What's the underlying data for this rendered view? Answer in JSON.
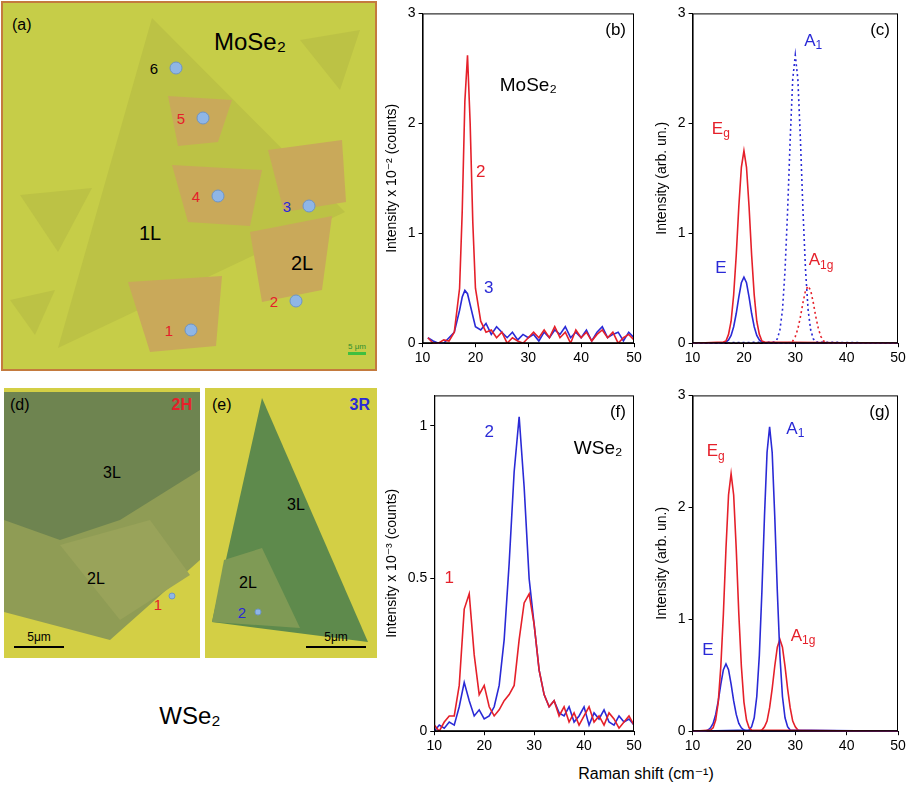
{
  "figure": {
    "x_label": "Raman shift (cm⁻¹)",
    "caption": "WSe₂"
  },
  "images": [
    {
      "panel": "(a)",
      "title": "MoSe₂",
      "title_color": "#000000",
      "regions": [
        "1L",
        "2L"
      ],
      "points": [
        {
          "label": "1",
          "color": "#e5202a"
        },
        {
          "label": "2",
          "color": "#e5202a"
        },
        {
          "label": "3",
          "color": "#2a2ad6"
        },
        {
          "label": "4",
          "color": "#e5202a"
        },
        {
          "label": "5",
          "color": "#e5202a"
        },
        {
          "label": "6",
          "color": "#000000"
        }
      ],
      "scale_bar": "5 μm"
    },
    {
      "panel": "(d)",
      "title": "2H",
      "title_color": "#e5202a",
      "regions": [
        "3L",
        "2L"
      ],
      "points": [
        {
          "label": "1",
          "color": "#e5202a"
        }
      ],
      "scale_bar": "5μm"
    },
    {
      "panel": "(e)",
      "title": "3R",
      "title_color": "#2a2ad6",
      "regions": [
        "3L",
        "2L"
      ],
      "points": [
        {
          "label": "2",
          "color": "#2a2ad6"
        }
      ],
      "scale_bar": "5μm"
    }
  ],
  "chart_data": [
    {
      "type": "line",
      "panel": "(b)",
      "title": "MoSe₂",
      "y_label": "Intensity x 10⁻² (counts)",
      "xlim": [
        10,
        50
      ],
      "xticks": [
        10,
        20,
        30,
        40,
        50
      ],
      "ylim": [
        0,
        3
      ],
      "yticks": [
        0,
        1,
        2,
        3
      ],
      "grid": false,
      "x": [
        11,
        12,
        13,
        14,
        15,
        16,
        17,
        17.5,
        18,
        18.5,
        19,
        19.5,
        20,
        21,
        22,
        23,
        24,
        25,
        26,
        27,
        28,
        29,
        30,
        31,
        32,
        33,
        34,
        35,
        36,
        37,
        38,
        39,
        40,
        41,
        42,
        43,
        44,
        45,
        46,
        47,
        48,
        49,
        50
      ],
      "series": [
        {
          "name": "2",
          "color": "#e5202a",
          "line_style": "solid",
          "label_x": 21,
          "label_y": 1.55,
          "values": [
            0.05,
            0,
            0,
            0.03,
            0.02,
            0.1,
            0.5,
            1.2,
            2.2,
            2.62,
            2.0,
            1.1,
            0.5,
            0.2,
            0.1,
            0.12,
            0.05,
            0.1,
            0,
            0.05,
            0.02,
            0,
            0.05,
            0.1,
            0.05,
            0.12,
            0.05,
            0.15,
            0.05,
            0.1,
            0,
            0.12,
            0.05,
            0.1,
            0.02,
            0.08,
            0.12,
            0.05,
            0.1,
            0,
            0.05,
            0.08,
            0.03
          ]
        },
        {
          "name": "3",
          "color": "#2a2ad6",
          "line_style": "solid",
          "label_x": 22.5,
          "label_y": 0.5,
          "values": [
            0.05,
            0.02,
            0,
            0,
            0.05,
            0.1,
            0.3,
            0.42,
            0.48,
            0.45,
            0.35,
            0.25,
            0.15,
            0.12,
            0.18,
            0.08,
            0.15,
            0.1,
            0.05,
            0.1,
            0.03,
            0.08,
            0.05,
            0.08,
            0.02,
            0.1,
            0.05,
            0.12,
            0.08,
            0.15,
            0.05,
            0.1,
            0.05,
            0.12,
            0.02,
            0.1,
            0.15,
            0.05,
            0.08,
            0.1,
            0.02,
            0.1,
            0.05
          ]
        }
      ]
    },
    {
      "type": "line",
      "panel": "(c)",
      "y_label": "Intensity (arb. un.)",
      "xlim": [
        10,
        50
      ],
      "xticks": [
        10,
        20,
        30,
        40,
        50
      ],
      "ylim": [
        0,
        3
      ],
      "yticks": [
        0,
        1,
        2,
        3
      ],
      "grid": false,
      "series": [
        {
          "name": "Eg",
          "color": "#e5202a",
          "line_style": "solid",
          "label_x": 15.5,
          "label_y": 1.95,
          "x": [
            10,
            16,
            16.5,
            17,
            17.5,
            18,
            18.5,
            19,
            19.5,
            20,
            20.5,
            21,
            21.5,
            22,
            22.5,
            23,
            23.5,
            24,
            50
          ],
          "values": [
            0,
            0.01,
            0.02,
            0.08,
            0.2,
            0.44,
            0.8,
            1.24,
            1.6,
            1.75,
            1.6,
            1.24,
            0.8,
            0.44,
            0.2,
            0.08,
            0.02,
            0.01,
            0
          ]
        },
        {
          "name": "E",
          "color": "#2a2ad6",
          "line_style": "solid",
          "label_x": 15.5,
          "label_y": 0.68,
          "x": [
            10,
            16,
            16.5,
            17,
            17.5,
            18,
            18.5,
            19,
            19.5,
            20,
            20.5,
            21,
            21.5,
            22,
            22.5,
            23,
            23.5,
            24,
            50
          ],
          "values": [
            0,
            0,
            0.01,
            0.03,
            0.07,
            0.15,
            0.27,
            0.42,
            0.55,
            0.6,
            0.55,
            0.42,
            0.27,
            0.15,
            0.07,
            0.03,
            0.01,
            0,
            0
          ]
        },
        {
          "name": "A1",
          "color": "#2a2ad6",
          "line_style": "dotted",
          "label_x": 33.5,
          "label_y": 2.75,
          "x": [
            10,
            26,
            26.5,
            27,
            27.5,
            28,
            28.5,
            29,
            29.5,
            30,
            30.5,
            31,
            31.5,
            32,
            32.5,
            33,
            33.5,
            34,
            50
          ],
          "values": [
            0,
            0.01,
            0.04,
            0.12,
            0.3,
            0.66,
            1.2,
            1.85,
            2.4,
            2.62,
            2.4,
            1.85,
            1.2,
            0.66,
            0.3,
            0.12,
            0.04,
            0.01,
            0
          ]
        },
        {
          "name": "A1g",
          "color": "#e5202a",
          "line_style": "dotted",
          "label_x": 35,
          "label_y": 0.75,
          "x": [
            10,
            28.5,
            29,
            29.5,
            30,
            30.5,
            31,
            31.5,
            32,
            32.5,
            33,
            33.5,
            34,
            34.5,
            35,
            35.5,
            36,
            36.5,
            50
          ],
          "values": [
            0,
            0,
            0.01,
            0.02,
            0.06,
            0.13,
            0.24,
            0.37,
            0.48,
            0.52,
            0.48,
            0.37,
            0.24,
            0.13,
            0.06,
            0.02,
            0.01,
            0,
            0
          ]
        }
      ]
    },
    {
      "type": "line",
      "panel": "(f)",
      "title": "WSe₂",
      "y_label": "Intensity x 10⁻³ (counts)",
      "xlim": [
        10,
        50
      ],
      "xticks": [
        10,
        20,
        30,
        40,
        50
      ],
      "ylim": [
        0,
        1.1
      ],
      "yticks": [
        0,
        0.5,
        1
      ],
      "grid": false,
      "x": [
        10,
        11,
        12,
        13,
        14,
        15,
        16,
        17,
        18,
        19,
        20,
        21,
        22,
        23,
        24,
        25,
        26,
        27,
        28,
        29,
        30,
        31,
        32,
        33,
        34,
        35,
        36,
        37,
        38,
        39,
        40,
        41,
        42,
        43,
        44,
        45,
        46,
        47,
        48,
        49,
        50
      ],
      "series": [
        {
          "name": "1",
          "color": "#e5202a",
          "line_style": "solid",
          "label_x": 13,
          "label_y": 0.5,
          "values": [
            0.02,
            0,
            0.03,
            0.05,
            0.05,
            0.15,
            0.4,
            0.45,
            0.25,
            0.12,
            0.15,
            0.08,
            0.05,
            0.07,
            0.1,
            0.12,
            0.15,
            0.3,
            0.42,
            0.45,
            0.35,
            0.2,
            0.12,
            0.08,
            0.1,
            0.05,
            0.08,
            0.03,
            0.06,
            0.02,
            0.05,
            0.08,
            0.03,
            0.05,
            0.02,
            0.06,
            0.04,
            0.01,
            0.03,
            0.05,
            0.02
          ]
        },
        {
          "name": "2",
          "color": "#2a2ad6",
          "line_style": "solid",
          "label_x": 21,
          "label_y": 0.98,
          "values": [
            0,
            0.02,
            0.01,
            0.03,
            0.02,
            0.08,
            0.16,
            0.1,
            0.05,
            0.07,
            0.04,
            0.05,
            0.08,
            0.15,
            0.3,
            0.55,
            0.85,
            1.03,
            0.8,
            0.5,
            0.35,
            0.2,
            0.12,
            0.08,
            0.1,
            0.06,
            0.05,
            0.08,
            0.03,
            0.05,
            0.08,
            0.02,
            0.06,
            0.04,
            0.07,
            0.03,
            0.02,
            0.05,
            0.03,
            0.04,
            0.02
          ]
        }
      ]
    },
    {
      "type": "line",
      "panel": "(g)",
      "y_label": "Intensity (arb. un.)",
      "xlim": [
        10,
        50
      ],
      "xticks": [
        10,
        20,
        30,
        40,
        50
      ],
      "ylim": [
        0,
        3
      ],
      "yticks": [
        0,
        1,
        2,
        3
      ],
      "grid": false,
      "series": [
        {
          "name": "Eg",
          "color": "#e5202a",
          "line_style": "solid",
          "label_x": 14.5,
          "label_y": 2.5,
          "x": [
            10,
            13.5,
            14,
            14.5,
            15,
            15.5,
            16,
            16.5,
            17,
            17.5,
            18,
            18.5,
            19,
            19.5,
            20,
            20.5,
            21,
            21.5,
            50
          ],
          "values": [
            0,
            0.01,
            0.03,
            0.1,
            0.26,
            0.58,
            1.05,
            1.63,
            2.11,
            2.3,
            2.11,
            1.63,
            1.05,
            0.58,
            0.26,
            0.1,
            0.03,
            0.01,
            0
          ]
        },
        {
          "name": "E",
          "color": "#2a2ad6",
          "line_style": "solid",
          "label_x": 13,
          "label_y": 0.72,
          "x": [
            10,
            12.5,
            13,
            13.5,
            14,
            14.5,
            15,
            15.5,
            16,
            16.5,
            17,
            17.5,
            18,
            18.5,
            19,
            19.5,
            20,
            20.5,
            50
          ],
          "values": [
            0,
            0,
            0.01,
            0.03,
            0.07,
            0.15,
            0.27,
            0.42,
            0.55,
            0.6,
            0.55,
            0.42,
            0.27,
            0.15,
            0.07,
            0.03,
            0.01,
            0,
            0
          ]
        },
        {
          "name": "A1",
          "color": "#2a2ad6",
          "line_style": "solid",
          "label_x": 30,
          "label_y": 2.7,
          "x": [
            10,
            21,
            21.5,
            22,
            22.5,
            23,
            23.5,
            24,
            24.5,
            25,
            25.5,
            26,
            26.5,
            27,
            27.5,
            28,
            28.5,
            29,
            50
          ],
          "values": [
            0,
            0.01,
            0.04,
            0.12,
            0.31,
            0.68,
            1.25,
            1.92,
            2.49,
            2.72,
            2.49,
            1.92,
            1.25,
            0.68,
            0.31,
            0.12,
            0.04,
            0.01,
            0
          ]
        },
        {
          "name": "A1g",
          "color": "#e5202a",
          "line_style": "solid",
          "label_x": 31.5,
          "label_y": 0.85,
          "x": [
            10,
            23,
            23.5,
            24,
            24.5,
            25,
            25.5,
            26,
            26.5,
            27,
            27.5,
            28,
            28.5,
            29,
            29.5,
            30,
            30.5,
            31,
            50
          ],
          "values": [
            0,
            0,
            0.01,
            0.04,
            0.09,
            0.21,
            0.38,
            0.58,
            0.75,
            0.82,
            0.75,
            0.58,
            0.38,
            0.21,
            0.09,
            0.04,
            0.01,
            0,
            0
          ]
        }
      ]
    }
  ]
}
